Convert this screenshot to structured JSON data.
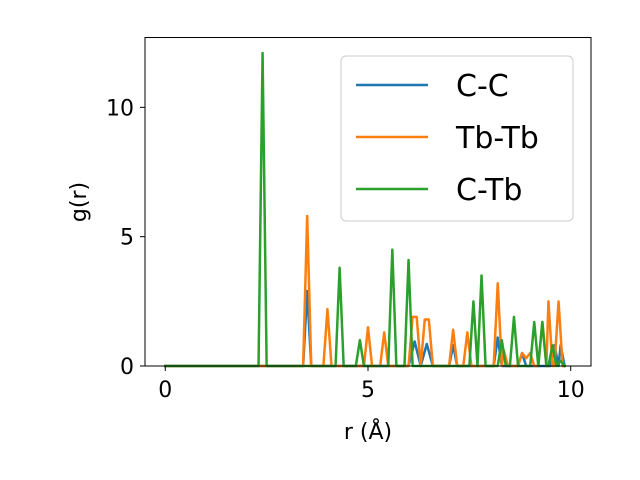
{
  "chart_data": {
    "type": "line",
    "xlabel": "r (Å)",
    "ylabel": "g(r)",
    "xlim": [
      -0.5,
      10.5
    ],
    "ylim": [
      0,
      12.7
    ],
    "xticks": [
      0,
      5,
      10
    ],
    "yticks": [
      0,
      5,
      10
    ],
    "grid": false,
    "legend_position": "top-right",
    "series": [
      {
        "name": "C-C",
        "color": "#1f77b4",
        "points": [
          [
            0,
            0
          ],
          [
            3.4,
            0
          ],
          [
            3.5,
            2.9
          ],
          [
            3.6,
            0
          ],
          [
            6.0,
            0
          ],
          [
            6.15,
            0.95
          ],
          [
            6.3,
            0
          ],
          [
            6.45,
            0.85
          ],
          [
            6.6,
            0
          ],
          [
            7.0,
            0
          ],
          [
            7.1,
            0.8
          ],
          [
            7.2,
            0
          ],
          [
            8.1,
            0
          ],
          [
            8.2,
            1.1
          ],
          [
            8.3,
            0
          ],
          [
            8.7,
            0
          ],
          [
            8.8,
            0.5
          ],
          [
            8.9,
            0
          ],
          [
            9.5,
            0
          ],
          [
            9.6,
            0.8
          ],
          [
            9.7,
            0
          ],
          [
            9.75,
            0.8
          ],
          [
            9.85,
            0
          ]
        ]
      },
      {
        "name": "Tb-Tb",
        "color": "#ff7f0e",
        "points": [
          [
            0,
            0
          ],
          [
            3.4,
            0
          ],
          [
            3.5,
            5.8
          ],
          [
            3.6,
            0
          ],
          [
            3.9,
            0
          ],
          [
            4.0,
            2.2
          ],
          [
            4.1,
            0
          ],
          [
            4.9,
            0
          ],
          [
            5.0,
            1.5
          ],
          [
            5.1,
            0
          ],
          [
            5.3,
            0
          ],
          [
            5.4,
            1.3
          ],
          [
            5.5,
            0
          ],
          [
            6.0,
            0
          ],
          [
            6.1,
            1.9
          ],
          [
            6.2,
            1.9
          ],
          [
            6.3,
            0
          ],
          [
            6.4,
            1.8
          ],
          [
            6.5,
            1.8
          ],
          [
            6.6,
            0
          ],
          [
            7.0,
            0
          ],
          [
            7.1,
            1.4
          ],
          [
            7.2,
            0
          ],
          [
            7.35,
            0
          ],
          [
            7.45,
            1.3
          ],
          [
            7.55,
            0
          ],
          [
            8.1,
            0
          ],
          [
            8.2,
            3.2
          ],
          [
            8.3,
            0
          ],
          [
            8.35,
            0.6
          ],
          [
            8.45,
            0
          ],
          [
            8.7,
            0
          ],
          [
            8.8,
            0.5
          ],
          [
            8.9,
            0.3
          ],
          [
            9.0,
            0.5
          ],
          [
            9.1,
            0
          ],
          [
            9.2,
            0
          ],
          [
            9.3,
            1.7
          ],
          [
            9.4,
            0
          ],
          [
            9.45,
            2.5
          ],
          [
            9.55,
            0
          ],
          [
            9.6,
            0
          ],
          [
            9.7,
            2.5
          ],
          [
            9.8,
            0
          ]
        ]
      },
      {
        "name": "C-Tb",
        "color": "#2ca02c",
        "points": [
          [
            0,
            0
          ],
          [
            2.3,
            0
          ],
          [
            2.4,
            12.1
          ],
          [
            2.5,
            0
          ],
          [
            4.2,
            0
          ],
          [
            4.3,
            3.8
          ],
          [
            4.4,
            0
          ],
          [
            4.7,
            0
          ],
          [
            4.8,
            1.0
          ],
          [
            4.9,
            0
          ],
          [
            5.5,
            0
          ],
          [
            5.6,
            4.5
          ],
          [
            5.7,
            0
          ],
          [
            5.9,
            0
          ],
          [
            6.0,
            4.1
          ],
          [
            6.1,
            0
          ],
          [
            7.5,
            0
          ],
          [
            7.6,
            2.5
          ],
          [
            7.7,
            0
          ],
          [
            7.8,
            3.5
          ],
          [
            7.9,
            0
          ],
          [
            8.2,
            0
          ],
          [
            8.3,
            1.0
          ],
          [
            8.4,
            0
          ],
          [
            8.5,
            0
          ],
          [
            8.6,
            1.9
          ],
          [
            8.7,
            0
          ],
          [
            9.0,
            0
          ],
          [
            9.1,
            1.7
          ],
          [
            9.2,
            0
          ],
          [
            9.3,
            1.7
          ],
          [
            9.4,
            0
          ],
          [
            9.45,
            0
          ],
          [
            9.55,
            0.8
          ],
          [
            9.65,
            0
          ],
          [
            9.75,
            0.2
          ],
          [
            9.85,
            0
          ]
        ]
      }
    ]
  }
}
